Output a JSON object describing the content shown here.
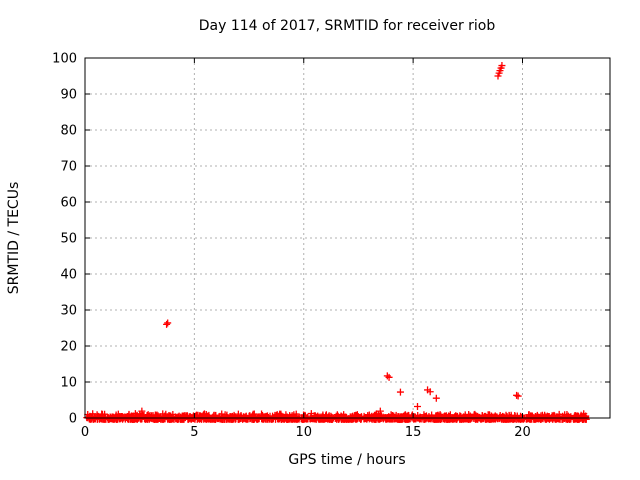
{
  "chart_data": {
    "type": "scatter",
    "title": "Day 114 of 2017, SRMTID for receiver riob",
    "xlabel": "GPS time / hours",
    "ylabel": "SRMTID / TECUs",
    "xlim": [
      0,
      24
    ],
    "ylim": [
      0,
      100
    ],
    "xticks": [
      0,
      5,
      10,
      15,
      20
    ],
    "yticks": [
      0,
      10,
      20,
      30,
      40,
      50,
      60,
      70,
      80,
      90,
      100
    ],
    "grid": true,
    "grid_style": "dashed",
    "legend": "none",
    "marker": "plus",
    "colors": {
      "marker": "#ff0000",
      "grid": "#b0b0b0",
      "border": "#000000",
      "background": "#ffffff",
      "text": "#000000"
    },
    "series": [
      {
        "name": "SRMTID",
        "outlier_points": [
          [
            2.6,
            1.9
          ],
          [
            3.73,
            26.0
          ],
          [
            3.78,
            26.4
          ],
          [
            13.5,
            1.9
          ],
          [
            13.82,
            11.7
          ],
          [
            13.9,
            11.3
          ],
          [
            14.42,
            7.2
          ],
          [
            15.2,
            3.2
          ],
          [
            15.66,
            7.8
          ],
          [
            15.78,
            7.3
          ],
          [
            16.06,
            5.5
          ],
          [
            18.88,
            95.0
          ],
          [
            18.93,
            95.8
          ],
          [
            18.97,
            96.5
          ],
          [
            19.02,
            97.2
          ],
          [
            19.06,
            97.9
          ],
          [
            19.73,
            6.3
          ],
          [
            19.8,
            6.1
          ]
        ],
        "noise_band": {
          "x_start": 0.03,
          "x_end": 22.95,
          "y_min": -0.4,
          "y_max": 1.3,
          "approx_point_count": 1500,
          "note": "dense quasi-continuous band of + markers hugging 0 TECUs across the whole day"
        }
      }
    ]
  }
}
